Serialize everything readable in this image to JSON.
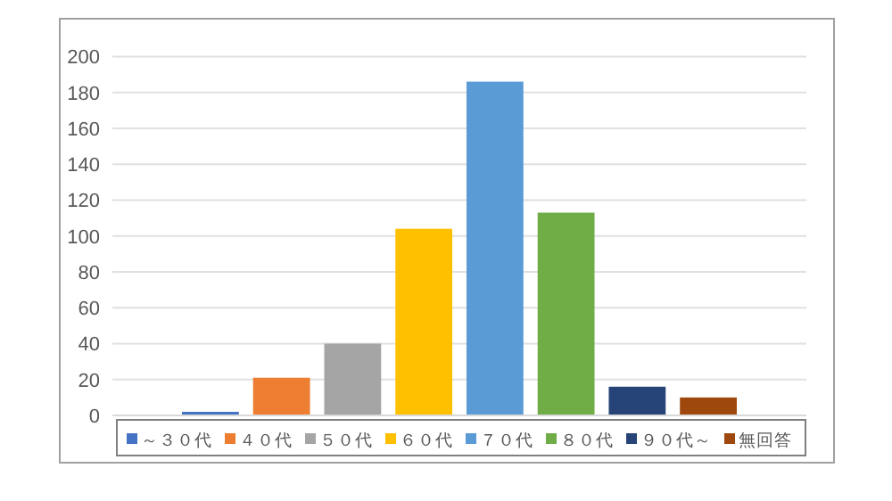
{
  "chart_data": {
    "type": "bar",
    "categories": [
      null
    ],
    "series": [
      {
        "name": "～３０代",
        "color": "#4472c4",
        "values": [
          2
        ]
      },
      {
        "name": "４０代",
        "color": "#ed7d31",
        "values": [
          21
        ]
      },
      {
        "name": "５０代",
        "color": "#a5a5a5",
        "values": [
          40
        ]
      },
      {
        "name": "６０代",
        "color": "#ffc000",
        "values": [
          104
        ]
      },
      {
        "name": "７０代",
        "color": "#5b9bd5",
        "values": [
          186
        ]
      },
      {
        "name": "８０代",
        "color": "#70ad47",
        "values": [
          113
        ]
      },
      {
        "name": "９０代～",
        "color": "#264478",
        "values": [
          16
        ]
      },
      {
        "name": "無回答",
        "color": "#9e480e",
        "values": [
          10
        ]
      }
    ],
    "ylim": [
      0,
      200
    ],
    "yticks": [
      0,
      20,
      40,
      60,
      80,
      100,
      120,
      140,
      160,
      180,
      200
    ],
    "grid": "y",
    "legend": "bottom",
    "tick_labels": "y"
  }
}
